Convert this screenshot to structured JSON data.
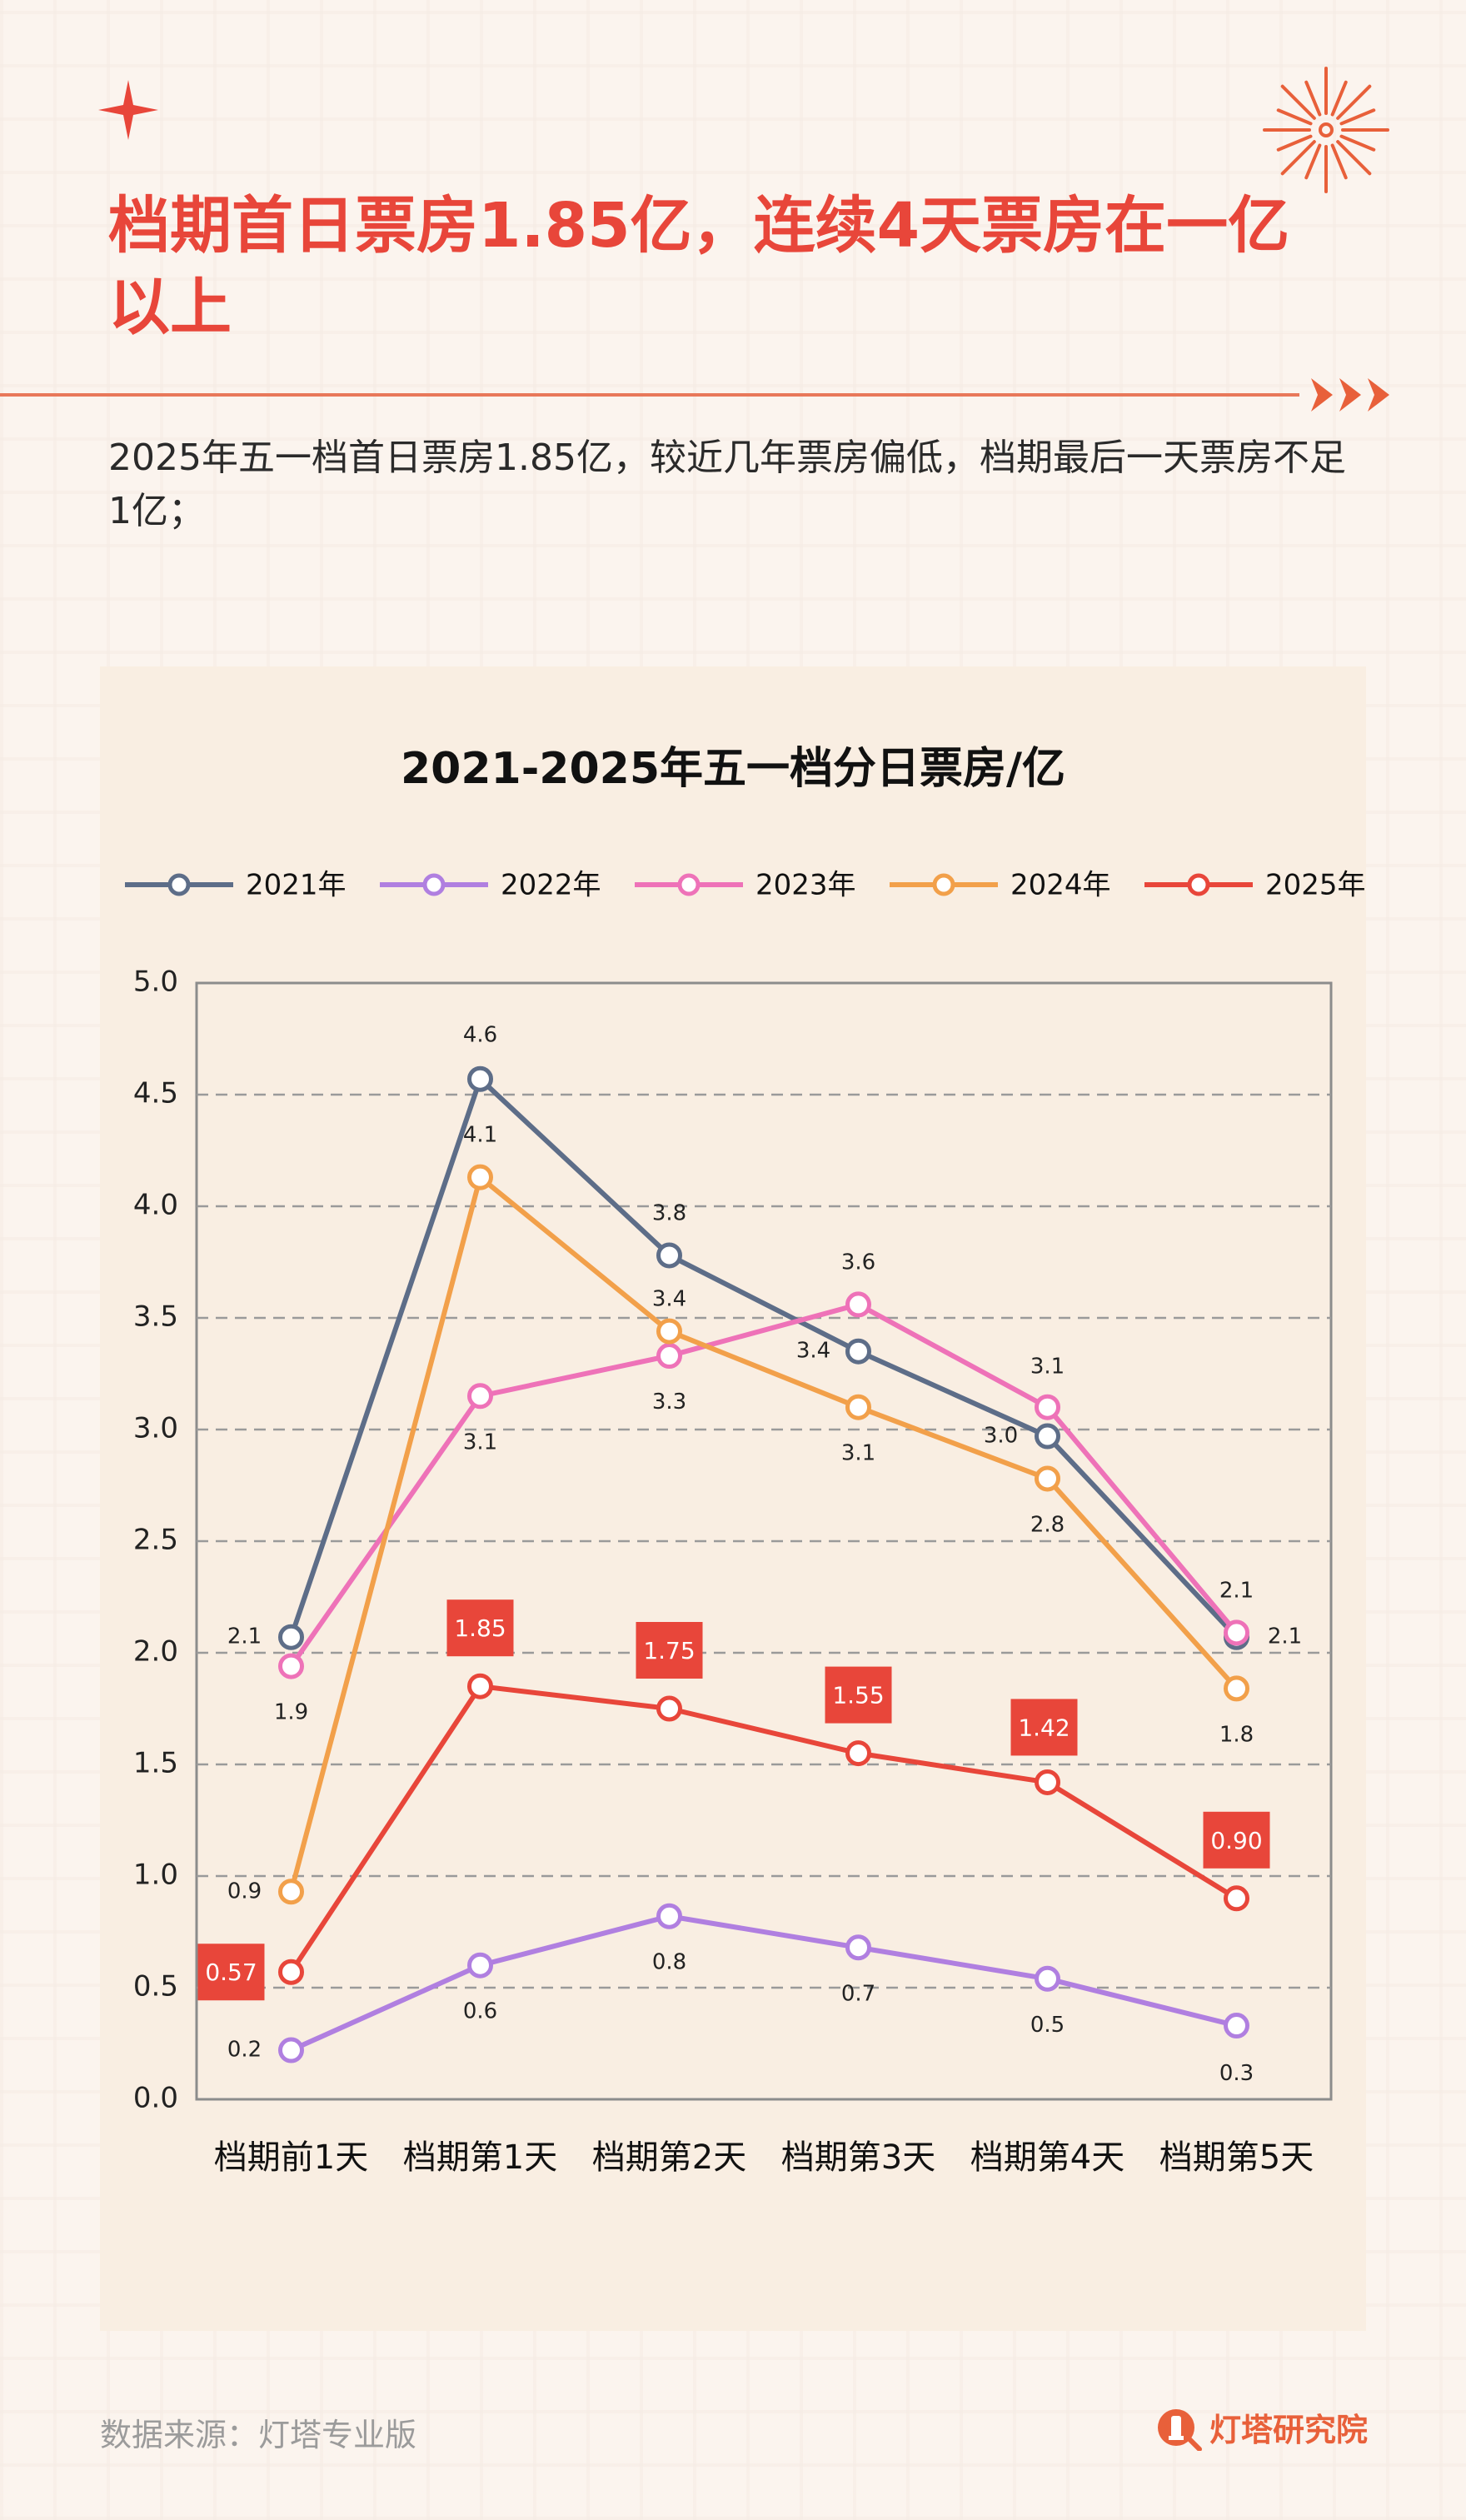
{
  "page": {
    "title": "档期首日票房1.85亿，连续4天票房在一亿以上",
    "subtitle": "2025年五一档首日票房1.85亿，较近几年票房偏低，档期最后一天票房不足1亿；",
    "source": "数据来源：灯塔专业版",
    "brand": "灯塔研究院",
    "colors": {
      "accent": "#e8463a",
      "panel": "#f9eee2",
      "background": "#fbf4ee"
    }
  },
  "chart_data": {
    "type": "line",
    "title": "2021-2025年五一档分日票房/亿",
    "xlabel": "",
    "ylabel": "",
    "categories": [
      "档期前1天",
      "档期第1天",
      "档期第2天",
      "档期第3天",
      "档期第4天",
      "档期第5天"
    ],
    "ylim": [
      0,
      5
    ],
    "yticks": [
      "0.0",
      "0.5",
      "1.0",
      "1.5",
      "2.0",
      "2.5",
      "3.0",
      "3.5",
      "4.0",
      "4.5",
      "5.0"
    ],
    "grid": "horizontal-dashed",
    "legend": "top",
    "series": [
      {
        "name": "2021年",
        "color": "#5d6d88",
        "values": [
          2.07,
          4.57,
          3.78,
          3.35,
          2.97,
          2.07
        ],
        "labels": [
          "2.1",
          "4.6",
          "3.8",
          "3.4",
          "3.0",
          "2.1"
        ]
      },
      {
        "name": "2022年",
        "color": "#b07fe0",
        "values": [
          0.22,
          0.6,
          0.82,
          0.68,
          0.54,
          0.33
        ],
        "labels": [
          "0.2",
          "0.6",
          "0.8",
          "0.7",
          "0.5",
          "0.3"
        ]
      },
      {
        "name": "2023年",
        "color": "#ee72b8",
        "values": [
          1.94,
          3.15,
          3.33,
          3.56,
          3.1,
          2.09
        ],
        "labels": [
          "1.9",
          "3.1",
          "3.3",
          "3.6",
          "3.1",
          "2.1"
        ]
      },
      {
        "name": "2024年",
        "color": "#f2a04a",
        "values": [
          0.93,
          4.13,
          3.44,
          3.1,
          2.78,
          1.84
        ],
        "labels": [
          "0.9",
          "4.1",
          "3.4",
          "3.1",
          "2.8",
          "1.8"
        ]
      },
      {
        "name": "2025年",
        "color": "#e8463a",
        "values": [
          0.57,
          1.85,
          1.75,
          1.55,
          1.42,
          0.9
        ],
        "labels": [
          "0.57",
          "1.85",
          "1.75",
          "1.55",
          "1.42",
          "0.90"
        ]
      }
    ]
  }
}
